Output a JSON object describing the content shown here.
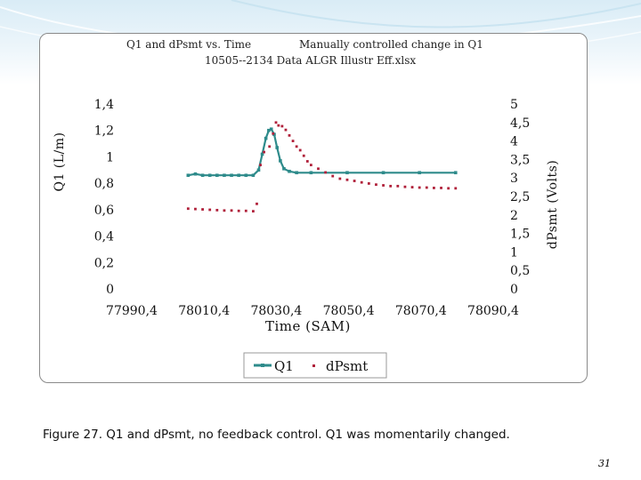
{
  "slide": {
    "caption": "Figure 27. Q1 and dPsmt, no feedback control. Q1 was momentarily changed.",
    "page_number": "31"
  },
  "chart_data": {
    "type": "scatter",
    "title_line1_left": "Q1 and dPsmt vs. Time",
    "title_line1_right": "Manually controlled change in Q1",
    "title_line2": "10505--2134 Data ALGR Illustr Eff.xlsx",
    "xlabel": "Time (SAM)",
    "ylabel_left": "Q1 (L/m)",
    "ylabel_right": "dPsmt (Volts)",
    "xlim": [
      77990.4,
      78090.4
    ],
    "ylim_left": [
      0,
      1.4
    ],
    "ylim_right": [
      0,
      5
    ],
    "x_ticks": [
      "77990,4",
      "78010,4",
      "78030,4",
      "78050,4",
      "78070,4",
      "78090,4"
    ],
    "y_ticks_left": [
      "0",
      "0,2",
      "0,4",
      "0,6",
      "0,8",
      "1",
      "1,2",
      "1,4"
    ],
    "y_ticks_right": [
      "0",
      "0,5",
      "1",
      "1,5",
      "2",
      "2,5",
      "3",
      "3,5",
      "4",
      "4,5",
      "5"
    ],
    "legend": [
      "Q1",
      "dPsmt"
    ],
    "colors": {
      "Q1": "#2e8b8b",
      "dPsmt": "#b0203a"
    },
    "series": [
      {
        "name": "Q1",
        "axis": "left",
        "points": [
          [
            78006.0,
            0.86
          ],
          [
            78008.0,
            0.87
          ],
          [
            78010.0,
            0.86
          ],
          [
            78012.0,
            0.86
          ],
          [
            78014.0,
            0.86
          ],
          [
            78016.0,
            0.86
          ],
          [
            78018.0,
            0.86
          ],
          [
            78020.0,
            0.86
          ],
          [
            78022.0,
            0.86
          ],
          [
            78024.0,
            0.86
          ],
          [
            78025.5,
            0.9
          ],
          [
            78026.5,
            1.02
          ],
          [
            78027.5,
            1.14
          ],
          [
            78028.3,
            1.2
          ],
          [
            78029.0,
            1.21
          ],
          [
            78029.8,
            1.17
          ],
          [
            78030.6,
            1.07
          ],
          [
            78031.5,
            0.97
          ],
          [
            78032.5,
            0.91
          ],
          [
            78034.0,
            0.89
          ],
          [
            78036.0,
            0.88
          ],
          [
            78040.0,
            0.88
          ],
          [
            78050.0,
            0.88
          ],
          [
            78060.0,
            0.88
          ],
          [
            78070.0,
            0.88
          ],
          [
            78080.0,
            0.88
          ]
        ]
      },
      {
        "name": "dPsmt",
        "axis": "right",
        "points": [
          [
            78006.0,
            2.17
          ],
          [
            78008.0,
            2.16
          ],
          [
            78010.0,
            2.15
          ],
          [
            78012.0,
            2.14
          ],
          [
            78014.0,
            2.13
          ],
          [
            78016.0,
            2.12
          ],
          [
            78018.0,
            2.12
          ],
          [
            78020.0,
            2.11
          ],
          [
            78022.0,
            2.11
          ],
          [
            78024.0,
            2.1
          ],
          [
            78025.0,
            2.3
          ],
          [
            78026.0,
            3.35
          ],
          [
            78027.0,
            3.7
          ],
          [
            78028.5,
            3.85
          ],
          [
            78029.5,
            4.2
          ],
          [
            78030.3,
            4.5
          ],
          [
            78031.0,
            4.42
          ],
          [
            78032.0,
            4.4
          ],
          [
            78033.0,
            4.3
          ],
          [
            78034.0,
            4.15
          ],
          [
            78035.0,
            4.0
          ],
          [
            78036.0,
            3.85
          ],
          [
            78037.0,
            3.75
          ],
          [
            78038.0,
            3.6
          ],
          [
            78039.0,
            3.45
          ],
          [
            78040.0,
            3.35
          ],
          [
            78042.0,
            3.25
          ],
          [
            78044.0,
            3.15
          ],
          [
            78046.0,
            3.05
          ],
          [
            78048.0,
            2.98
          ],
          [
            78050.0,
            2.95
          ],
          [
            78052.0,
            2.92
          ],
          [
            78054.0,
            2.88
          ],
          [
            78056.0,
            2.85
          ],
          [
            78058.0,
            2.82
          ],
          [
            78060.0,
            2.8
          ],
          [
            78062.0,
            2.78
          ],
          [
            78064.0,
            2.78
          ],
          [
            78066.0,
            2.76
          ],
          [
            78068.0,
            2.75
          ],
          [
            78070.0,
            2.74
          ],
          [
            78072.0,
            2.74
          ],
          [
            78074.0,
            2.73
          ],
          [
            78076.0,
            2.73
          ],
          [
            78078.0,
            2.72
          ],
          [
            78080.0,
            2.72
          ]
        ]
      }
    ]
  }
}
